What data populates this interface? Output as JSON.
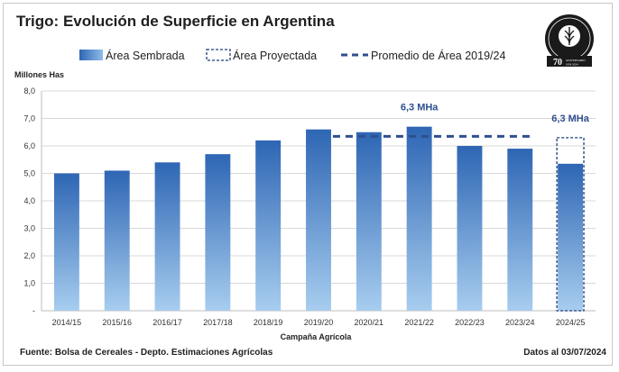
{
  "header": {
    "title": "Trigo: Evolución de Superficie en Argentina"
  },
  "footer": {
    "source": "Fuente: Bolsa de Cereales - Depto. Estimaciones Agrícolas",
    "date": "Datos al 03/07/2024"
  },
  "logo": {
    "name": "Bolsa de Cereales",
    "badge": "70",
    "caption": "ANIVERSARIO 1954 2024"
  },
  "colors": {
    "bar_top": "#2e66b4",
    "bar_bottom": "#a7cdef",
    "projected_border": "#1f3f78",
    "average_line": "#2f4f8f",
    "annotation": "#2f4f8f",
    "grid": "#d9d9d9"
  },
  "chart_data": {
    "type": "bar",
    "title": "Trigo: Evolución de Superficie en Argentina",
    "xlabel": "Campaña Agrícola",
    "ylabel": "Millones Has",
    "ylim": [
      0,
      8
    ],
    "yticks": [
      0,
      1,
      2,
      3,
      4,
      5,
      6,
      7,
      8
    ],
    "ytick_labels": [
      "-",
      "1,0",
      "2,0",
      "3,0",
      "4,0",
      "5,0",
      "6,0",
      "7,0",
      "8,0"
    ],
    "categories": [
      "2014/15",
      "2015/16",
      "2016/17",
      "2017/18",
      "2018/19",
      "2019/20",
      "2020/21",
      "2021/22",
      "2022/23",
      "2023/24",
      "2024/25"
    ],
    "series": [
      {
        "name": "Área Sembrada",
        "values": [
          5.0,
          5.1,
          5.4,
          5.7,
          6.2,
          6.6,
          6.5,
          6.7,
          6.0,
          5.9,
          5.35
        ]
      },
      {
        "name": "Área Proyectada",
        "values": [
          null,
          null,
          null,
          null,
          null,
          null,
          null,
          null,
          null,
          null,
          6.3
        ]
      },
      {
        "name": "Promedio de Área 2019/24",
        "value": 6.35,
        "span": [
          "2019/20",
          "2023/24"
        ]
      }
    ],
    "annotations": [
      {
        "text": "6,3 MHa",
        "category": "2021/22"
      },
      {
        "text": "6,3 MHa",
        "category": "2024/25"
      }
    ],
    "grid": true,
    "legend_position": "top"
  }
}
